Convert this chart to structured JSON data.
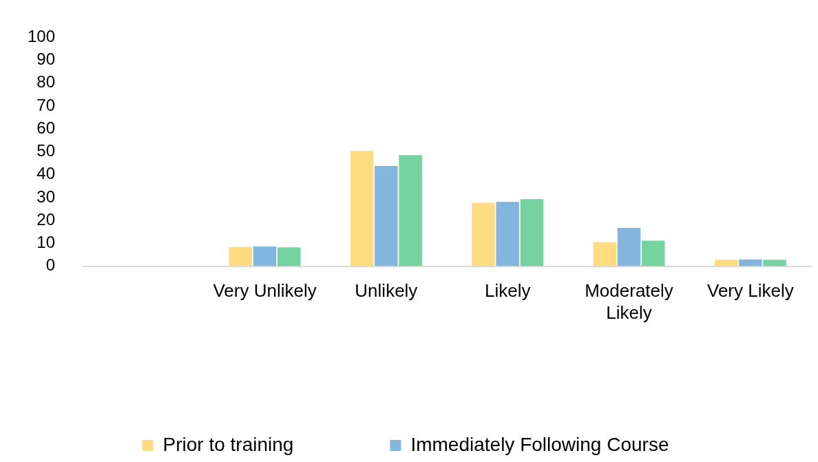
{
  "chart_data": {
    "type": "bar",
    "categories": [
      null,
      "Very Unlikely",
      "Unlikely",
      "Likely",
      "Moderately Likely",
      "Very Likely"
    ],
    "series": [
      {
        "name": "Prior to training",
        "color": "#ffdc80",
        "values": [
          null,
          8.4,
          50.4,
          27.7,
          10.6,
          2.8
        ]
      },
      {
        "name": "Immediately Following Course",
        "color": "#82b6de",
        "values": [
          null,
          8.6,
          43.8,
          28.1,
          16.7,
          3.0
        ]
      },
      {
        "color": "#74d39f",
        "values": [
          null,
          8.2,
          48.6,
          29.3,
          11.2,
          2.8
        ]
      }
    ],
    "ylim": [
      0,
      100
    ],
    "yticks": [
      0,
      10,
      20,
      30,
      40,
      50,
      60,
      70,
      80,
      90,
      100
    ],
    "grid": false,
    "legend": "bottom"
  }
}
